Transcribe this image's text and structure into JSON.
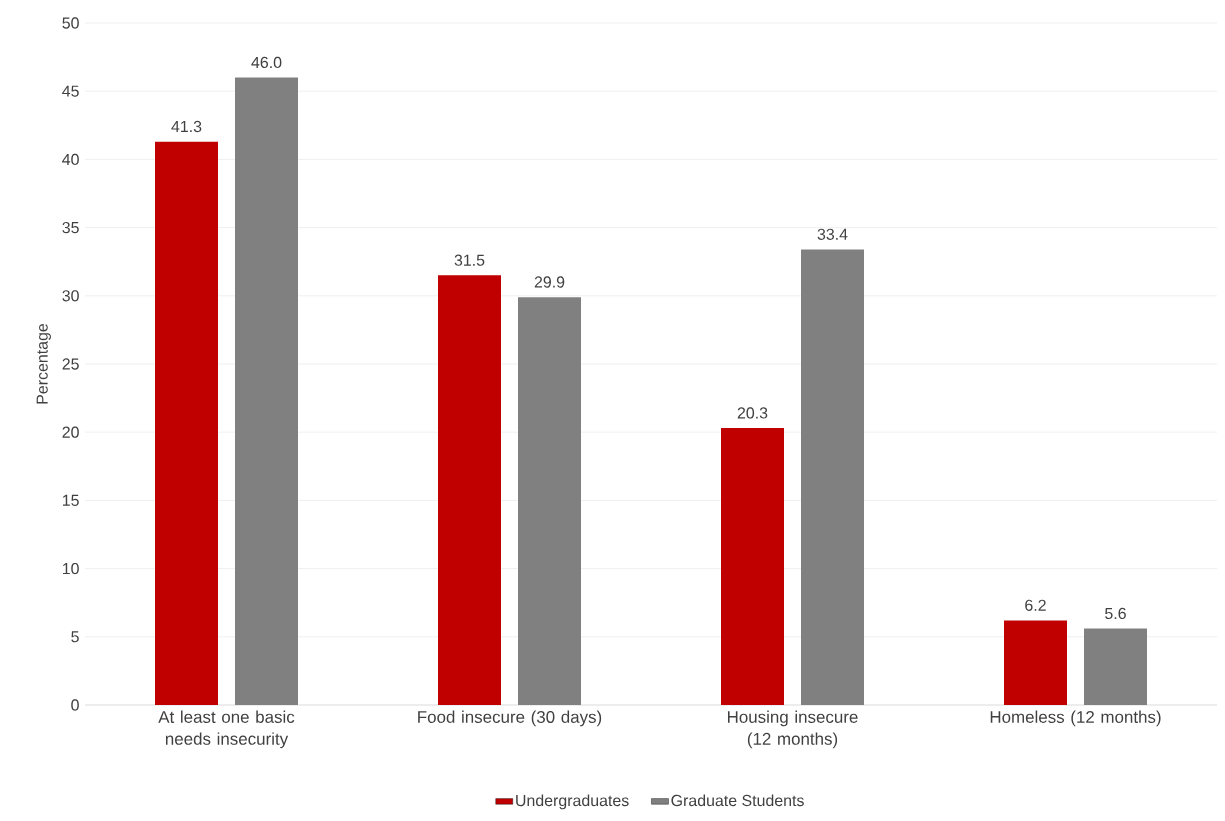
{
  "chart_data": {
    "type": "bar",
    "ylabel": "Percentage",
    "categories": [
      "At least one basic needs insecurity",
      "Food insecure (30 days)",
      "Housing insecure (12 months)",
      "Homeless (12 months)"
    ],
    "series": [
      {
        "name": "Undergraduates",
        "color": "#c00000",
        "values": [
          41.3,
          31.5,
          20.3,
          6.2
        ],
        "value_labels": [
          "41.3",
          "31.5",
          "20.3",
          "6.2"
        ]
      },
      {
        "name": "Graduate Students",
        "color": "#808080",
        "values": [
          46.0,
          29.9,
          33.4,
          5.6
        ],
        "value_labels": [
          "46.0",
          "29.9",
          "33.4",
          "5.6"
        ]
      }
    ],
    "ylim": [
      0,
      50
    ],
    "yticks": [
      0,
      5,
      10,
      15,
      20,
      25,
      30,
      35,
      40,
      45,
      50
    ],
    "grid": "y",
    "legend": "bottom"
  }
}
